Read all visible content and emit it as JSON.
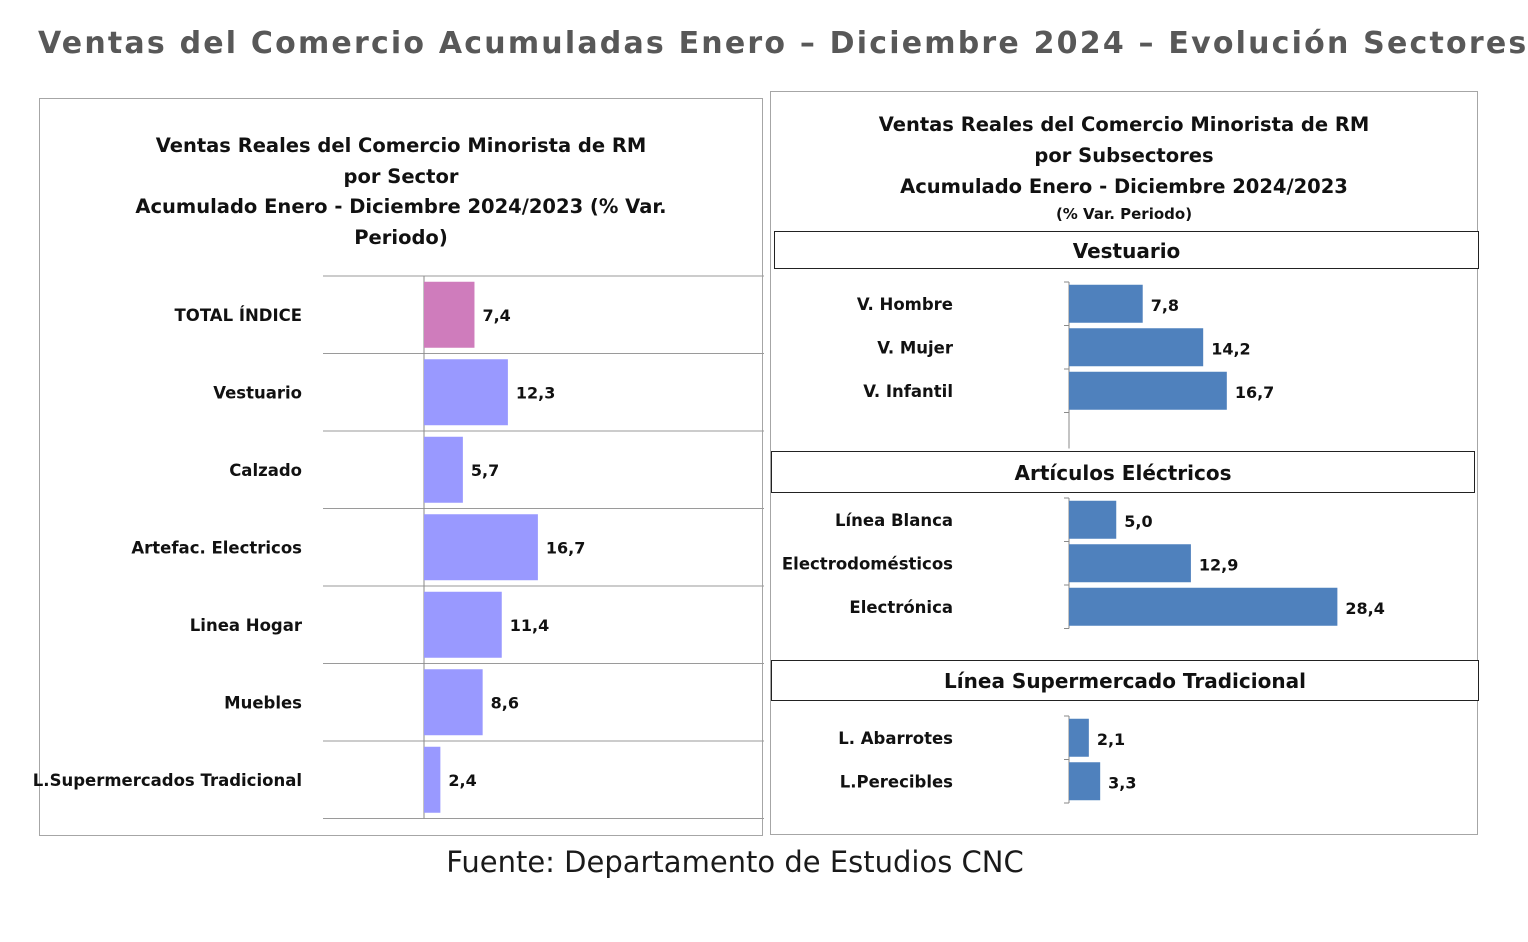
{
  "title": "Ventas del Comercio Acumuladas Enero – Diciembre 2024 – Evolución Sectores",
  "source": "Fuente: Departamento de Estudios CNC",
  "colors": {
    "total": "#cf7cbc",
    "sector": "#9999ff",
    "subsector": "#4f81bd"
  },
  "chart_data": [
    {
      "type": "bar",
      "orientation": "horizontal",
      "title_lines": [
        "Ventas Reales del Comercio Minorista de RM",
        "por Sector",
        "Acumulado Enero - Diciembre 2024/2023 (% Var.",
        "Periodo)"
      ],
      "categories": [
        "TOTAL ÍNDICE",
        "Vestuario",
        "Calzado",
        "Artefac. Electricos",
        "Linea Hogar",
        "Muebles",
        "L.Supermercados Tradicional"
      ],
      "values": [
        7.4,
        12.3,
        5.7,
        16.7,
        11.4,
        8.6,
        2.4
      ],
      "value_labels": [
        "7,4",
        "12,3",
        "5,7",
        "16,7",
        "11,4",
        "8,6",
        "2,4"
      ],
      "grid": true,
      "legend": "none"
    },
    {
      "type": "bar",
      "orientation": "horizontal",
      "title_lines": [
        "Ventas Reales del Comercio Minorista de RM",
        "por Subsectores",
        "Acumulado Enero - Diciembre  2024/2023"
      ],
      "subtitle": "(% Var. Periodo)",
      "groups": [
        {
          "name": "Vestuario",
          "categories": [
            "V. Hombre",
            "V. Mujer",
            "V. Infantil"
          ],
          "values": [
            7.8,
            14.2,
            16.7
          ],
          "value_labels": [
            "7,8",
            "14,2",
            "16,7"
          ]
        },
        {
          "name": "Artículos Eléctricos",
          "categories": [
            "Línea Blanca",
            "Electrodomésticos",
            "Electrónica"
          ],
          "values": [
            5.0,
            12.9,
            28.4
          ],
          "value_labels": [
            "5,0",
            "12,9",
            "28,4"
          ]
        },
        {
          "name": "Línea  Supermercado Tradicional",
          "categories": [
            "L. Abarrotes",
            "L.Perecibles"
          ],
          "values": [
            2.1,
            3.3
          ],
          "value_labels": [
            "2,1",
            "3,3"
          ]
        }
      ],
      "grid": false,
      "legend": "none"
    }
  ]
}
